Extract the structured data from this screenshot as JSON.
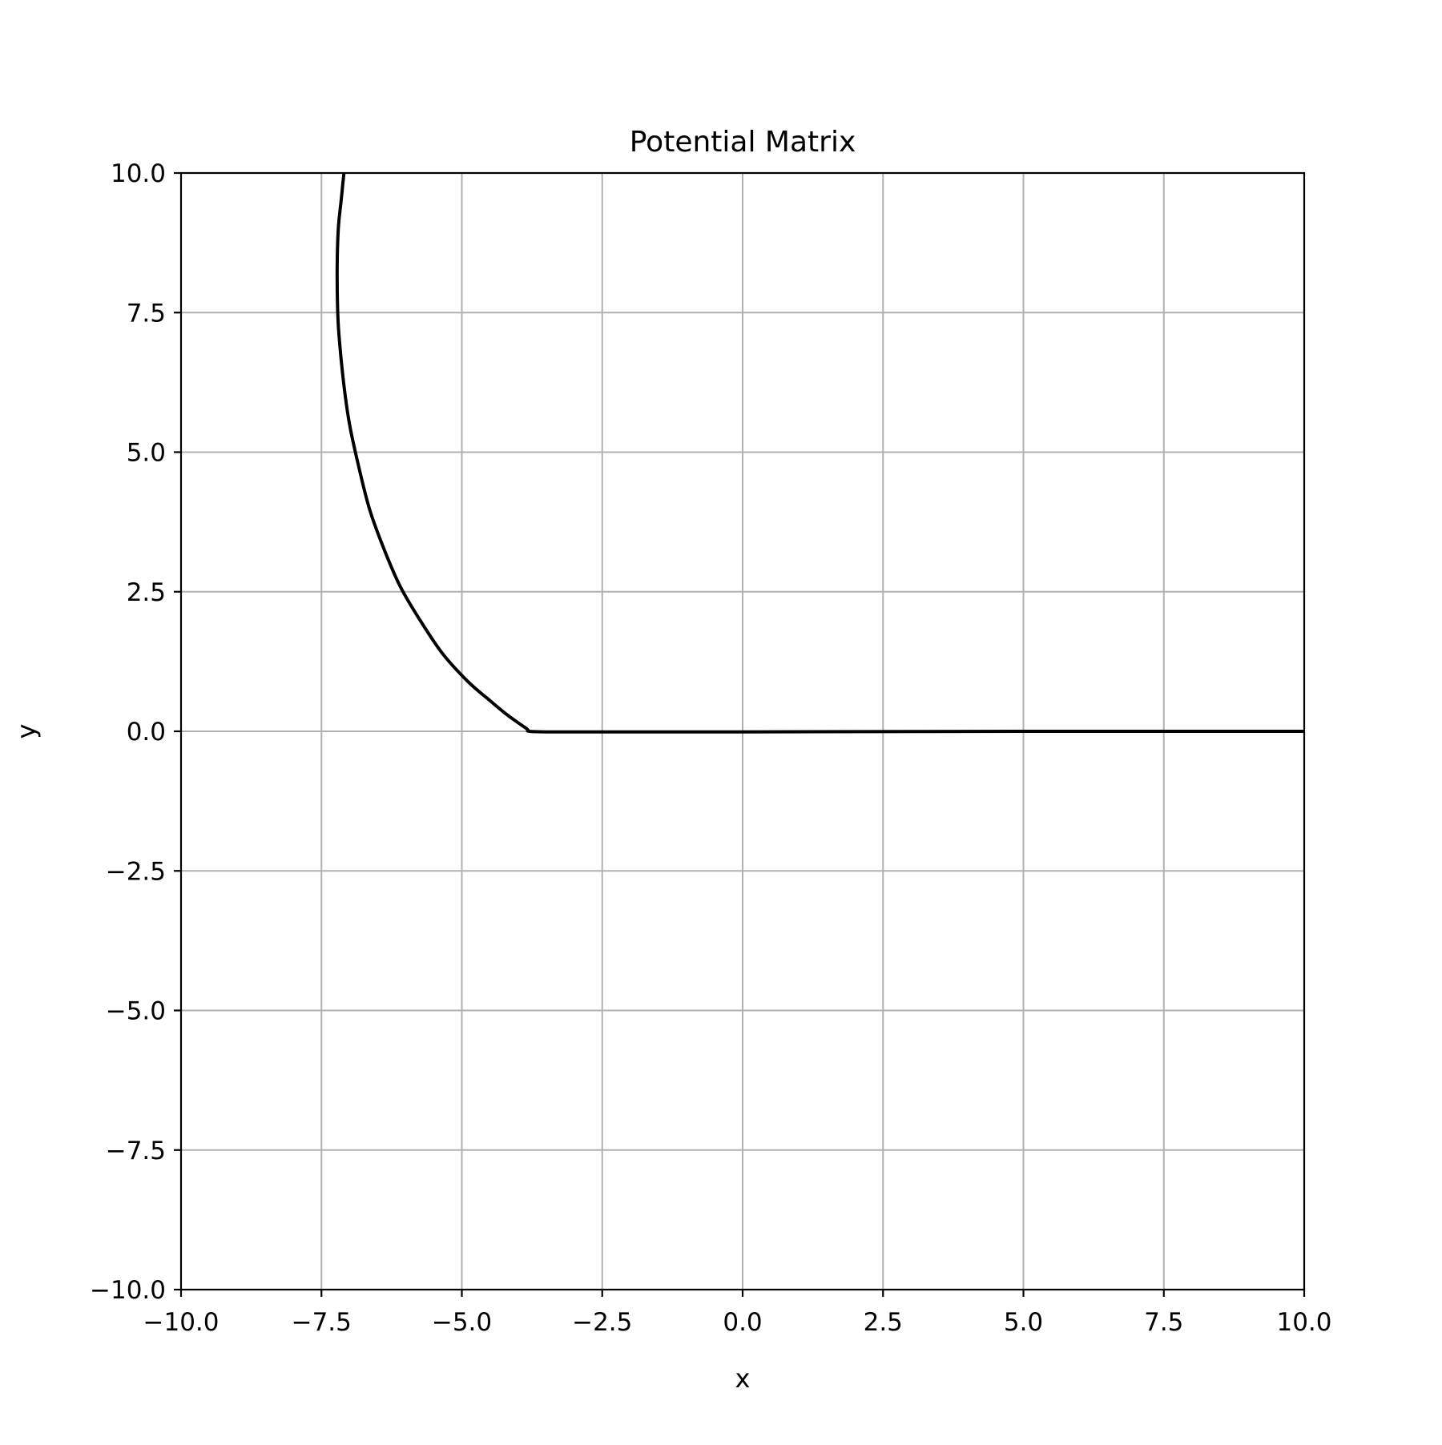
{
  "chart_data": {
    "type": "line",
    "title": "Potential Matrix",
    "xlabel": "x",
    "ylabel": "y",
    "xlim": [
      -10,
      10
    ],
    "ylim": [
      -10,
      10
    ],
    "xticks": [
      -10,
      -7.5,
      -5,
      -2.5,
      0,
      2.5,
      5,
      7.5,
      10
    ],
    "yticks": [
      -10,
      -7.5,
      -5,
      -2.5,
      0,
      2.5,
      5,
      7.5,
      10
    ],
    "xtick_labels": [
      "−10.0",
      "−7.5",
      "−5.0",
      "−2.5",
      "0.0",
      "2.5",
      "5.0",
      "7.5",
      "10.0"
    ],
    "ytick_labels": [
      "−10.0",
      "−7.5",
      "−5.0",
      "−2.5",
      "0.0",
      "2.5",
      "5.0",
      "7.5",
      "10.0"
    ],
    "grid": true,
    "line_color": "#000000",
    "grid_color": "#b0b0b0",
    "series": [
      {
        "x": [
          -7.1,
          -7.15,
          -7.2,
          -7.22,
          -7.21,
          -7.18,
          -7.1,
          -7.0,
          -6.85,
          -6.65,
          -6.4,
          -6.1,
          -5.75,
          -5.35,
          -4.9,
          -4.5,
          -4.2,
          -3.95,
          -3.85,
          -3.82,
          -3.8,
          -3.5,
          -3.0,
          0.0,
          5.0,
          10.0
        ],
        "y": [
          10.0,
          9.5,
          9.0,
          8.3,
          7.5,
          7.0,
          6.2,
          5.5,
          4.8,
          4.0,
          3.3,
          2.6,
          2.0,
          1.4,
          0.9,
          0.55,
          0.3,
          0.12,
          0.05,
          0.02,
          0.0,
          -0.01,
          -0.01,
          -0.01,
          0.0,
          0.0
        ]
      }
    ]
  }
}
